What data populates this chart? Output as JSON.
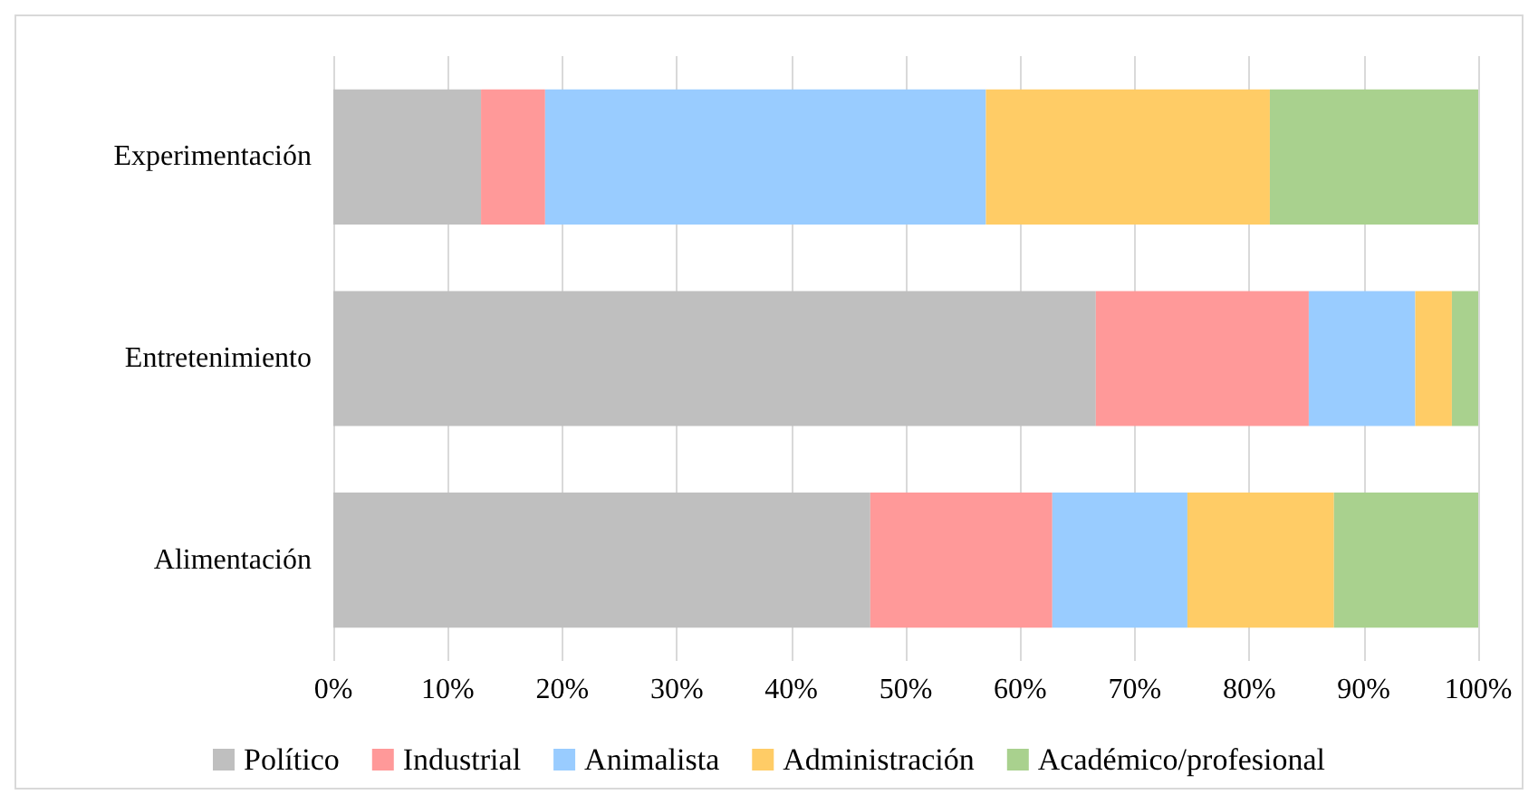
{
  "chart_data": {
    "type": "bar",
    "orientation": "horizontal",
    "stacked": true,
    "categories": [
      "Experimentación",
      "Entretenimiento",
      "Alimentación"
    ],
    "series": [
      {
        "name": "Político",
        "color": "#bfbfbf",
        "values": [
          12.9,
          66.6,
          46.9
        ]
      },
      {
        "name": "Industrial",
        "color": "#ff9999",
        "values": [
          5.6,
          18.6,
          15.9
        ]
      },
      {
        "name": "Animalista",
        "color": "#99ccff",
        "values": [
          38.5,
          9.3,
          11.8
        ]
      },
      {
        "name": "Administración",
        "color": "#ffcc66",
        "values": [
          24.8,
          3.2,
          12.8
        ]
      },
      {
        "name": "Académico/profesional",
        "color": "#a9d18e",
        "values": [
          18.2,
          2.3,
          12.6
        ]
      }
    ],
    "xlim": [
      0,
      100
    ],
    "xticks": [
      {
        "value": 0,
        "label": "0%"
      },
      {
        "value": 10,
        "label": "10%"
      },
      {
        "value": 20,
        "label": "20%"
      },
      {
        "value": 30,
        "label": "30%"
      },
      {
        "value": 40,
        "label": "40%"
      },
      {
        "value": 50,
        "label": "50%"
      },
      {
        "value": 60,
        "label": "60%"
      },
      {
        "value": 70,
        "label": "70%"
      },
      {
        "value": 80,
        "label": "80%"
      },
      {
        "value": 90,
        "label": "90%"
      },
      {
        "value": 100,
        "label": "100%"
      }
    ],
    "grid": "x",
    "legend": "bottom"
  }
}
